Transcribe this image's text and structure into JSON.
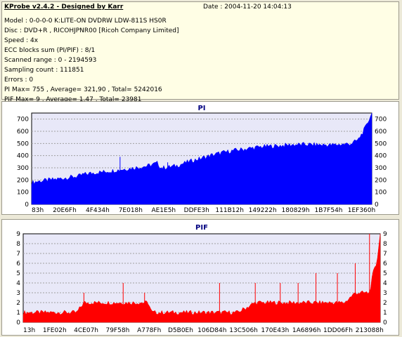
{
  "header": {
    "title": "KProbe v2.4.2 - Designed by Karr",
    "date": "Date : 2004-11-20 14:04:13",
    "lines": [
      "Model : 0-0-0-0 K:LITE-ON DVDRW LDW-811S   HS0R",
      "Disc : DVD+R , RICOHJPNR00 [Ricoh Company Limited]",
      "Speed : 4x",
      "ECC blocks sum (PI/PIF) : 8/1",
      "Scanned range : 0 - 2194593",
      "Sampling count : 111851",
      "Errors : 0",
      "PI Max= 755 , Average= 321,90 , Total= 5242016",
      "PIF Max= 9 , Average= 1,47 , Total= 23981"
    ]
  },
  "colors": {
    "pi_fill": "#0000ff",
    "pif_fill": "#ff0000",
    "plot_bg": "#e8e8f8",
    "title": "#000080"
  },
  "chart_data": [
    {
      "type": "area",
      "title": "PI",
      "x_tick_labels": [
        "83h",
        "20E6Fh",
        "4F434h",
        "7E018h",
        "AE1E5h",
        "DDFE3h",
        "111B12h",
        "149222h",
        "180829h",
        "1B7F54h",
        "1EF360h"
      ],
      "ylim": [
        0,
        750
      ],
      "y_ticks": [
        0,
        100,
        200,
        300,
        400,
        500,
        600,
        700
      ],
      "grid": true,
      "series": [
        {
          "x": [
            0,
            0.02,
            0.05,
            0.08,
            0.11,
            0.14,
            0.15,
            0.18,
            0.22,
            0.26,
            0.3,
            0.34,
            0.37,
            0.38,
            0.4,
            0.43,
            0.46,
            0.5,
            0.53,
            0.56,
            0.6,
            0.64,
            0.68,
            0.72,
            0.76,
            0.8,
            0.84,
            0.88,
            0.92,
            0.94,
            0.96,
            0.975,
            0.985,
            0.995,
            1.0
          ],
          "values": [
            180,
            190,
            200,
            210,
            222,
            232,
            245,
            258,
            270,
            285,
            300,
            315,
            340,
            300,
            305,
            320,
            350,
            380,
            405,
            425,
            445,
            460,
            475,
            480,
            490,
            492,
            490,
            488,
            495,
            500,
            530,
            600,
            650,
            720,
            755
          ],
          "spikes": [
            [
              0.26,
              390
            ],
            [
              0.4,
              345
            ]
          ]
        }
      ]
    },
    {
      "type": "area",
      "title": "PIF",
      "x_tick_labels": [
        "13h",
        "1FE02h",
        "4CE07h",
        "79F58h",
        "A778Fh",
        "D5B0Eh",
        "106D84h",
        "13C506h",
        "170E43h",
        "1A6896h",
        "1DD06Fh",
        "213088h"
      ],
      "ylim": [
        0,
        9
      ],
      "y_ticks": [
        0,
        1,
        2,
        3,
        4,
        5,
        6,
        7,
        8,
        9
      ],
      "grid": true,
      "series": [
        {
          "x": [
            0,
            0.05,
            0.1,
            0.15,
            0.17,
            0.2,
            0.25,
            0.3,
            0.35,
            0.36,
            0.4,
            0.45,
            0.5,
            0.55,
            0.6,
            0.65,
            0.7,
            0.75,
            0.8,
            0.85,
            0.9,
            0.93,
            0.95,
            0.97,
            0.98,
            0.99,
            1.0
          ],
          "values": [
            1,
            1,
            1,
            1,
            2,
            2,
            2,
            2,
            2,
            1,
            1,
            1,
            1,
            1,
            1,
            2,
            2,
            2,
            2,
            2,
            2,
            3,
            3,
            3,
            5,
            6,
            9
          ],
          "spikes": [
            [
              0.17,
              3
            ],
            [
              0.28,
              4
            ],
            [
              0.34,
              3
            ],
            [
              0.55,
              4
            ],
            [
              0.65,
              4
            ],
            [
              0.72,
              4
            ],
            [
              0.77,
              4
            ],
            [
              0.82,
              5
            ],
            [
              0.88,
              5
            ],
            [
              0.93,
              6
            ],
            [
              0.97,
              9
            ]
          ]
        }
      ]
    }
  ]
}
